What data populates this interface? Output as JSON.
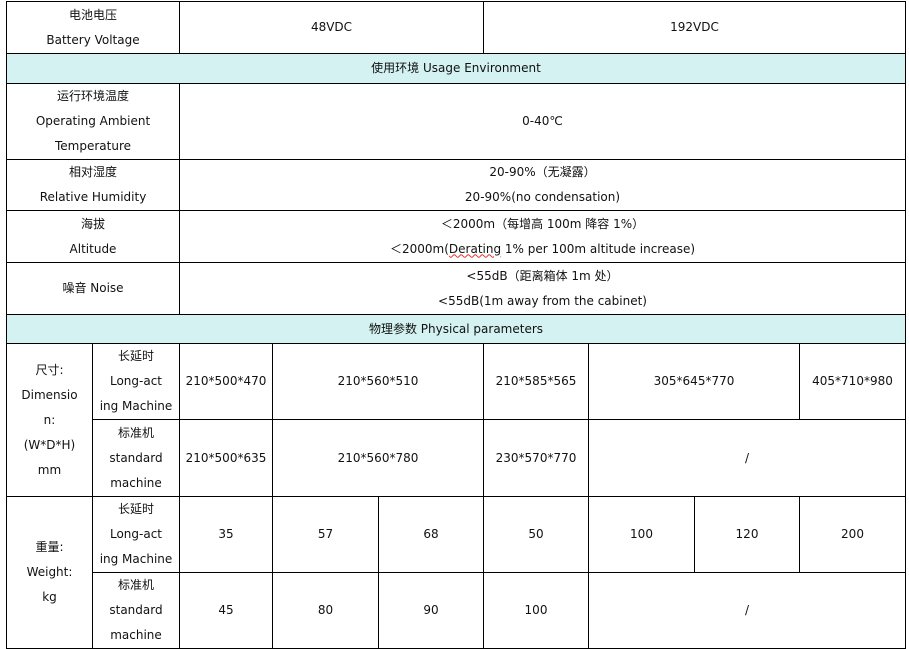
{
  "battery": {
    "label_cn": "电池电压",
    "label_en": "Battery Voltage",
    "v1": "48VDC",
    "v2": "192VDC"
  },
  "usage": {
    "header": "使用环境 Usage Environment",
    "temp": {
      "cn": "运行环境温度",
      "en1": "Operating Ambient",
      "en2": "Temperature",
      "value": "0-40℃"
    },
    "humidity": {
      "cn": "相对湿度",
      "en": "Relative Humidity",
      "v_cn": "20-90%（无凝露）",
      "v_en": "20-90%(no condensation)"
    },
    "altitude": {
      "cn": "海拔",
      "en": "Altitude",
      "v_cn": "＜2000m（每增高 100m 降容 1%）",
      "v_en_a": "＜2000m(",
      "v_en_b": "Derating",
      "v_en_c": " 1% per 100m altitude increase)"
    },
    "noise": {
      "label": "噪音 Noise",
      "v_cn": "<55dB（距离箱体 1m 处）",
      "v_en": "<55dB(1m away from the cabinet)"
    }
  },
  "physical": {
    "header": "物理参数 Physical parameters",
    "long": {
      "cn": "长延时",
      "en1": "Long-act",
      "en2": "ing Machine"
    },
    "std": {
      "cn": "标准机",
      "en1": "standard",
      "en2": "machine"
    },
    "dimension": {
      "l1": "尺寸:",
      "l2": "Dimensio",
      "l3": "n:",
      "l4": "(W*D*H)",
      "l5": "mm",
      "long": [
        "210*500*470",
        "210*560*510",
        "210*585*565",
        "305*645*770",
        "405*710*980"
      ],
      "std": [
        "210*500*635",
        "210*560*780",
        "230*570*770",
        "/"
      ]
    },
    "weight": {
      "l1": "重量:",
      "l2": "Weight:",
      "l3": "kg",
      "long": [
        "35",
        "57",
        "68",
        "50",
        "100",
        "120",
        "200"
      ],
      "std": [
        "45",
        "80",
        "90",
        "100",
        "/"
      ]
    }
  }
}
